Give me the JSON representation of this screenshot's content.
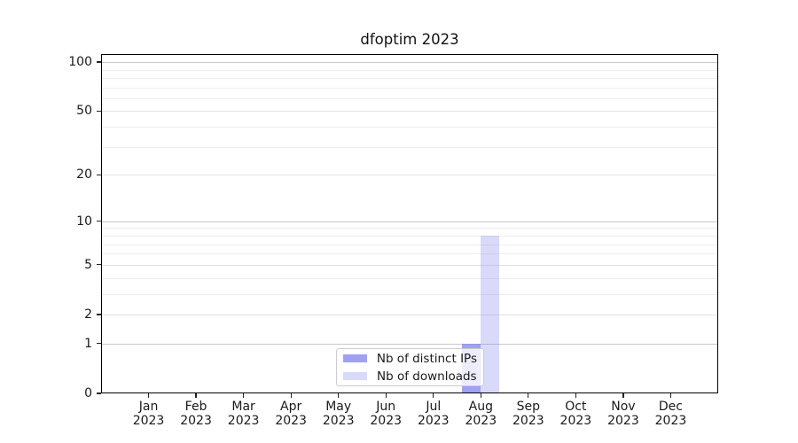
{
  "title": "dfoptim 2023",
  "chart_data": {
    "type": "bar",
    "title": "dfoptim 2023",
    "categories": [
      "Jan",
      "Feb",
      "Mar",
      "Apr",
      "May",
      "Jun",
      "Jul",
      "Aug",
      "Sep",
      "Oct",
      "Nov",
      "Dec"
    ],
    "tick_year": "2023",
    "series": [
      {
        "name": "Nb of distinct IPs",
        "color": "rgba(130,130,238,0.75)",
        "values": [
          0,
          0,
          0,
          0,
          0,
          0,
          0,
          1,
          0,
          0,
          0,
          0
        ]
      },
      {
        "name": "Nb of downloads",
        "color": "rgba(130,130,238,0.30)",
        "values": [
          0,
          0,
          0,
          0,
          0,
          0,
          0,
          8,
          0,
          0,
          0,
          0
        ]
      }
    ],
    "xlabel": "",
    "ylabel": "",
    "yscale": "log10(1+x)",
    "ylim": [
      0,
      112
    ],
    "yticks_labeled": [
      0,
      1,
      2,
      5,
      10,
      20,
      50,
      100
    ],
    "yticks_major_grid": [
      1,
      10,
      100
    ],
    "yticks_minor_labeled_grid": [
      2,
      5,
      20,
      50
    ],
    "yticks_minor_grid": [
      3,
      4,
      6,
      7,
      8,
      9,
      30,
      40,
      60,
      70,
      80,
      90
    ],
    "grid": true,
    "legend_position": "lower center",
    "bar_group": "side-by-side, centered on month tick"
  },
  "colors": {
    "bar_base": "#8282ee",
    "grid_major": "#c9c9c9",
    "grid_minor_labeled": "#e2e2e2",
    "grid_minor": "#ededed",
    "axis": "#000000",
    "text": "#1a1a1a",
    "legend_border": "#cccccc"
  }
}
